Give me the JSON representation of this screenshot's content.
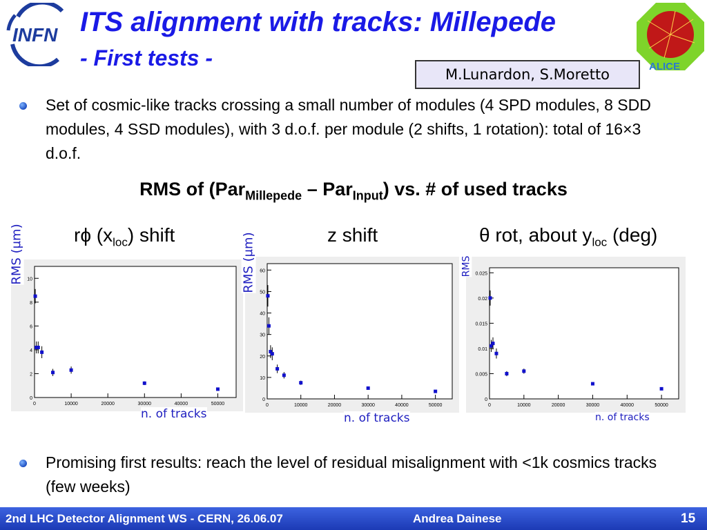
{
  "header": {
    "logo_text": "INFN",
    "title_line1": "ITS alignment with tracks: Millepede",
    "title_line2": "- First tests -",
    "authors": "M.Lunardon, S.Moretto",
    "alice_logo_text": "ALICE"
  },
  "bullets": [
    "Set of cosmic-like tracks crossing a small number of modules (4 SPD modules, 8 SDD modules, 4 SSD modules), with 3 d.o.f. per module (2 shifts, 1 rotation): total of 16×3 d.o.f.",
    "Promising first results: reach the level of residual misalignment with <1k cosmics tracks (few weeks)"
  ],
  "subtitle": {
    "prefix": "RMS of (Par",
    "sub1": "Millepede",
    "middle": " – Par",
    "sub2": "Input",
    "suffix": ") vs. # of used tracks"
  },
  "columns": [
    {
      "pre": "rϕ (x",
      "sub": "loc",
      "post": ") shift"
    },
    {
      "pre": "z shift",
      "sub": "",
      "post": ""
    },
    {
      "pre": "θ rot, about y",
      "sub": "loc",
      "post": " (deg)"
    }
  ],
  "panel_labels": [
    {
      "ylabel": "RMS (μm)",
      "xlabel": "n. of tracks"
    },
    {
      "ylabel": "RMS (μm)",
      "xlabel": "n. of tracks"
    },
    {
      "ylabel": "RMS",
      "xlabel": "n. of tracks"
    }
  ],
  "chart_data": [
    {
      "type": "scatter",
      "title": "rϕ (xloc) shift",
      "xlabel": "n. of tracks",
      "ylabel": "RMS (μm)",
      "xlim": [
        0,
        55000
      ],
      "ylim": [
        0,
        11
      ],
      "xticks": [
        0,
        10000,
        20000,
        30000,
        40000,
        50000
      ],
      "xtick_labels": [
        "0",
        "10000",
        "20000",
        "30000",
        "40000",
        "50000"
      ],
      "yticks": [
        0,
        2,
        4,
        6,
        8,
        10
      ],
      "ytick_labels": [
        "0",
        "2",
        "4",
        "6",
        "8",
        "10"
      ],
      "x": [
        200,
        500,
        1000,
        2000,
        5000,
        10000,
        30000,
        50000
      ],
      "y": [
        8.5,
        4.2,
        4.2,
        3.8,
        2.1,
        2.3,
        1.2,
        0.7
      ],
      "yerr": [
        0.6,
        0.5,
        0.5,
        0.5,
        0.3,
        0.3,
        0.15,
        0.1
      ],
      "grid": false,
      "marker_color": "#1111cc"
    },
    {
      "type": "scatter",
      "title": "z shift",
      "xlabel": "n. of tracks",
      "ylabel": "RMS (μm)",
      "xlim": [
        0,
        55000
      ],
      "ylim": [
        0,
        63
      ],
      "xticks": [
        0,
        10000,
        20000,
        30000,
        40000,
        50000
      ],
      "xtick_labels": [
        "0",
        "10000",
        "20000",
        "30000",
        "40000",
        "50000"
      ],
      "yticks": [
        0,
        10,
        20,
        30,
        40,
        50,
        60
      ],
      "ytick_labels": [
        "0",
        "10",
        "20",
        "30",
        "40",
        "50",
        "60"
      ],
      "x": [
        200,
        500,
        1000,
        1500,
        3000,
        5000,
        10000,
        30000,
        50000
      ],
      "y": [
        48,
        34,
        22,
        21,
        14,
        11,
        7.5,
        5,
        3.5
      ],
      "yerr": [
        5,
        4,
        3,
        3,
        2,
        1.5,
        1,
        0.6,
        0.4
      ],
      "grid": false,
      "marker_color": "#1111cc"
    },
    {
      "type": "scatter",
      "title": "θ rot, about yloc (deg)",
      "xlabel": "n. of tracks",
      "ylabel": "RMS",
      "xlim": [
        0,
        55000
      ],
      "ylim": [
        0,
        0.026
      ],
      "xticks": [
        0,
        10000,
        20000,
        30000,
        40000,
        50000
      ],
      "xtick_labels": [
        "0",
        "10000",
        "20000",
        "30000",
        "40000",
        "50000"
      ],
      "yticks": [
        0,
        0.005,
        0.01,
        0.015,
        0.02,
        0.025
      ],
      "ytick_labels": [
        "0",
        "0.005",
        "0.01",
        "0.015",
        "0.02",
        "0.025"
      ],
      "x": [
        200,
        500,
        1000,
        2000,
        5000,
        10000,
        30000,
        50000
      ],
      "y": [
        0.02,
        0.0105,
        0.011,
        0.009,
        0.005,
        0.0055,
        0.003,
        0.002
      ],
      "yerr": [
        0.0015,
        0.0012,
        0.0012,
        0.001,
        0.0005,
        0.0005,
        0.0003,
        0.0002
      ],
      "grid": false,
      "marker_color": "#1111cc"
    }
  ],
  "footer": {
    "left": "2nd LHC Detector Alignment WS - CERN, 26.06.07",
    "center": "Andrea Dainese",
    "page": "15"
  }
}
